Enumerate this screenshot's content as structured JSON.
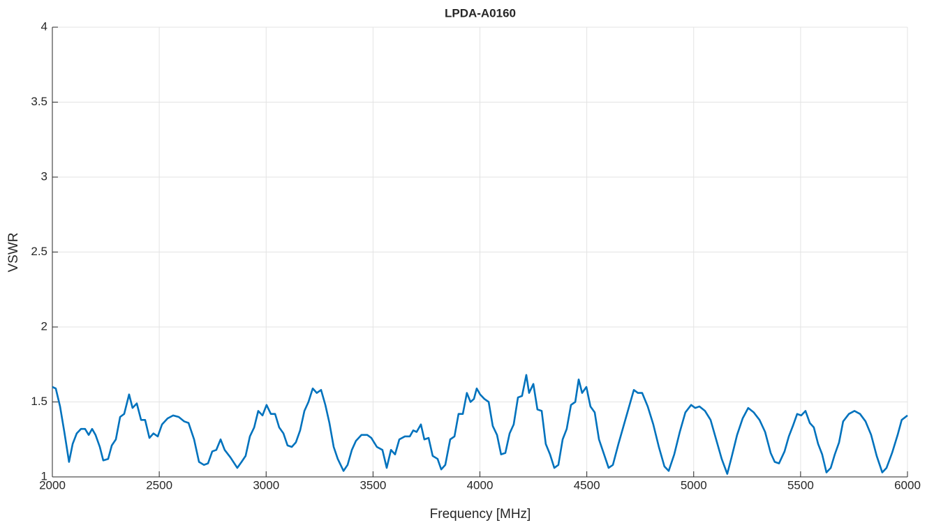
{
  "chart_data": {
    "type": "line",
    "title": "LPDA-A0160",
    "xlabel": "Frequency [MHz]",
    "ylabel": "VSWR",
    "color": "#0072BD",
    "grid": true,
    "xlim": [
      2000,
      6000
    ],
    "ylim": [
      1,
      4
    ],
    "xticks": [
      2000,
      2500,
      3000,
      3500,
      4000,
      4500,
      5000,
      5500,
      6000
    ],
    "yticks": [
      1,
      1.5,
      2,
      2.5,
      3,
      3.5,
      4
    ],
    "x": [
      2000,
      2016,
      2036,
      2056,
      2078,
      2095,
      2114,
      2134,
      2153,
      2170,
      2186,
      2202,
      2222,
      2238,
      2261,
      2278,
      2297,
      2317,
      2336,
      2359,
      2375,
      2395,
      2415,
      2434,
      2454,
      2473,
      2493,
      2513,
      2539,
      2565,
      2591,
      2617,
      2637,
      2663,
      2686,
      2709,
      2728,
      2748,
      2767,
      2787,
      2806,
      2833,
      2865,
      2885,
      2904,
      2924,
      2944,
      2963,
      2983,
      3002,
      3022,
      3042,
      3061,
      3081,
      3100,
      3120,
      3139,
      3159,
      3179,
      3198,
      3218,
      3237,
      3257,
      3277,
      3296,
      3316,
      3335,
      3362,
      3381,
      3401,
      3420,
      3446,
      3473,
      3492,
      3518,
      3544,
      3564,
      3584,
      3603,
      3623,
      3649,
      3672,
      3688,
      3704,
      3724,
      3740,
      3760,
      3779,
      3802,
      3819,
      3838,
      3861,
      3881,
      3900,
      3920,
      3939,
      3956,
      3972,
      3985,
      4001,
      4021,
      4041,
      4060,
      4080,
      4099,
      4119,
      4139,
      4158,
      4178,
      4197,
      4217,
      4230,
      4250,
      4269,
      4289,
      4308,
      4328,
      4348,
      4367,
      4387,
      4406,
      4426,
      4446,
      4462,
      4478,
      4498,
      4517,
      4537,
      4557,
      4576,
      4602,
      4622,
      4648,
      4674,
      4694,
      4720,
      4739,
      4759,
      4785,
      4811,
      4837,
      4863,
      4883,
      4909,
      4935,
      4961,
      4988,
      5007,
      5027,
      5053,
      5079,
      5105,
      5131,
      5157,
      5177,
      5203,
      5229,
      5255,
      5281,
      5308,
      5334,
      5360,
      5379,
      5399,
      5425,
      5445,
      5464,
      5484,
      5503,
      5523,
      5543,
      5562,
      5582,
      5601,
      5621,
      5641,
      5660,
      5680,
      5699,
      5726,
      5752,
      5778,
      5804,
      5830,
      5856,
      5882,
      5902,
      5928,
      5954,
      5973,
      6000
    ],
    "values": [
      1.6,
      1.59,
      1.47,
      1.3,
      1.1,
      1.22,
      1.29,
      1.32,
      1.32,
      1.28,
      1.32,
      1.28,
      1.2,
      1.11,
      1.12,
      1.21,
      1.25,
      1.4,
      1.42,
      1.55,
      1.46,
      1.49,
      1.38,
      1.38,
      1.26,
      1.29,
      1.27,
      1.35,
      1.39,
      1.41,
      1.4,
      1.37,
      1.36,
      1.25,
      1.1,
      1.08,
      1.09,
      1.17,
      1.18,
      1.25,
      1.18,
      1.13,
      1.06,
      1.1,
      1.14,
      1.27,
      1.33,
      1.44,
      1.41,
      1.48,
      1.42,
      1.42,
      1.33,
      1.29,
      1.21,
      1.2,
      1.23,
      1.31,
      1.44,
      1.5,
      1.59,
      1.56,
      1.58,
      1.48,
      1.36,
      1.2,
      1.12,
      1.04,
      1.08,
      1.18,
      1.24,
      1.28,
      1.28,
      1.26,
      1.2,
      1.18,
      1.06,
      1.18,
      1.15,
      1.25,
      1.27,
      1.27,
      1.31,
      1.3,
      1.35,
      1.25,
      1.26,
      1.14,
      1.12,
      1.05,
      1.08,
      1.25,
      1.27,
      1.42,
      1.42,
      1.56,
      1.5,
      1.52,
      1.59,
      1.55,
      1.52,
      1.5,
      1.34,
      1.28,
      1.15,
      1.16,
      1.29,
      1.35,
      1.53,
      1.54,
      1.68,
      1.56,
      1.62,
      1.45,
      1.44,
      1.22,
      1.15,
      1.06,
      1.08,
      1.25,
      1.32,
      1.48,
      1.5,
      1.65,
      1.56,
      1.6,
      1.47,
      1.43,
      1.25,
      1.17,
      1.06,
      1.08,
      1.22,
      1.35,
      1.45,
      1.58,
      1.56,
      1.56,
      1.47,
      1.35,
      1.2,
      1.07,
      1.04,
      1.15,
      1.3,
      1.43,
      1.48,
      1.46,
      1.47,
      1.44,
      1.38,
      1.25,
      1.12,
      1.02,
      1.13,
      1.28,
      1.39,
      1.46,
      1.43,
      1.38,
      1.3,
      1.16,
      1.1,
      1.09,
      1.17,
      1.27,
      1.34,
      1.42,
      1.41,
      1.44,
      1.36,
      1.33,
      1.22,
      1.15,
      1.03,
      1.06,
      1.15,
      1.23,
      1.37,
      1.42,
      1.44,
      1.42,
      1.37,
      1.28,
      1.14,
      1.03,
      1.06,
      1.16,
      1.28,
      1.38,
      1.41
    ]
  }
}
